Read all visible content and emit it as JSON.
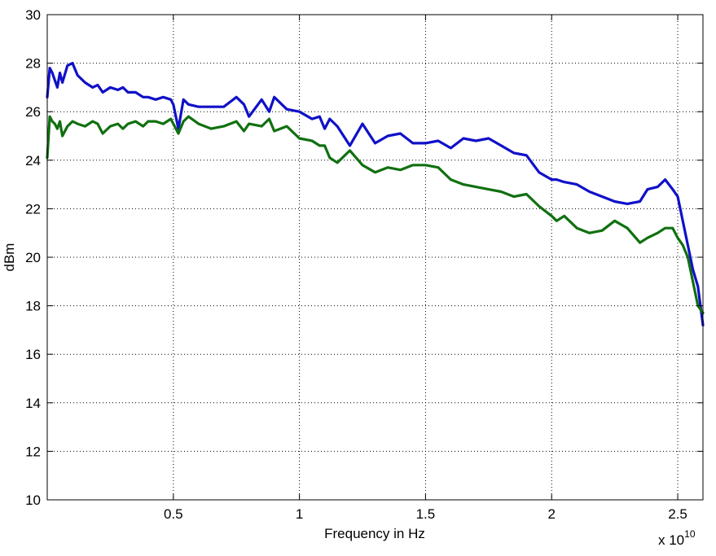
{
  "chart_data": {
    "type": "line",
    "title": "",
    "xlabel": "Frequency in Hz",
    "ylabel": "dBm",
    "x_exponent_label": "x 10",
    "x_exponent_power": "10",
    "x_scale": 10000000000.0,
    "xlim": [
      0.0,
      2.6
    ],
    "ylim": [
      10,
      30
    ],
    "grid": true,
    "grid_style": "dotted",
    "legend": "none",
    "x_ticks": [
      0.5,
      1,
      1.5,
      2,
      2.5
    ],
    "x_tick_labels": [
      "0.5",
      "1",
      "1.5",
      "2",
      "2.5"
    ],
    "y_ticks": [
      10,
      12,
      14,
      16,
      18,
      20,
      22,
      24,
      26,
      28,
      30
    ],
    "y_tick_labels": [
      "10",
      "12",
      "14",
      "16",
      "18",
      "20",
      "22",
      "24",
      "26",
      "28",
      "30"
    ],
    "series": [
      {
        "color": "#1010c8",
        "x": [
          0.0,
          0.01,
          0.02,
          0.03,
          0.04,
          0.05,
          0.06,
          0.08,
          0.1,
          0.12,
          0.15,
          0.18,
          0.2,
          0.22,
          0.25,
          0.28,
          0.3,
          0.32,
          0.35,
          0.38,
          0.4,
          0.43,
          0.46,
          0.49,
          0.5,
          0.52,
          0.54,
          0.56,
          0.6,
          0.65,
          0.7,
          0.75,
          0.78,
          0.8,
          0.85,
          0.88,
          0.9,
          0.95,
          1.0,
          1.05,
          1.08,
          1.1,
          1.12,
          1.15,
          1.2,
          1.25,
          1.3,
          1.35,
          1.4,
          1.45,
          1.5,
          1.55,
          1.6,
          1.65,
          1.7,
          1.75,
          1.8,
          1.85,
          1.9,
          1.95,
          2.0,
          2.02,
          2.05,
          2.1,
          2.15,
          2.2,
          2.25,
          2.3,
          2.35,
          2.38,
          2.42,
          2.45,
          2.48,
          2.5,
          2.52,
          2.54,
          2.56,
          2.58,
          2.6
        ],
        "y": [
          26.6,
          27.8,
          27.6,
          27.3,
          27.0,
          27.6,
          27.2,
          27.9,
          28.0,
          27.5,
          27.2,
          27.0,
          27.1,
          26.8,
          27.0,
          26.9,
          27.0,
          26.8,
          26.8,
          26.6,
          26.6,
          26.5,
          26.6,
          26.5,
          26.3,
          25.3,
          26.5,
          26.3,
          26.2,
          26.2,
          26.2,
          26.6,
          26.3,
          25.8,
          26.5,
          26.0,
          26.6,
          26.1,
          26.0,
          25.7,
          25.8,
          25.3,
          25.7,
          25.4,
          24.6,
          25.5,
          24.7,
          25.0,
          25.1,
          24.7,
          24.7,
          24.8,
          24.5,
          24.9,
          24.8,
          24.9,
          24.6,
          24.3,
          24.2,
          23.5,
          23.2,
          23.2,
          23.1,
          23.0,
          22.7,
          22.5,
          22.3,
          22.2,
          22.3,
          22.8,
          22.9,
          23.2,
          22.8,
          22.5,
          21.5,
          20.5,
          19.5,
          18.8,
          17.2
        ]
      },
      {
        "color": "#107010",
        "x": [
          0.0,
          0.01,
          0.02,
          0.03,
          0.04,
          0.05,
          0.06,
          0.08,
          0.1,
          0.12,
          0.15,
          0.18,
          0.2,
          0.22,
          0.25,
          0.28,
          0.3,
          0.32,
          0.35,
          0.38,
          0.4,
          0.43,
          0.46,
          0.49,
          0.5,
          0.52,
          0.54,
          0.56,
          0.6,
          0.65,
          0.7,
          0.75,
          0.78,
          0.8,
          0.85,
          0.88,
          0.9,
          0.95,
          1.0,
          1.05,
          1.08,
          1.1,
          1.12,
          1.15,
          1.2,
          1.25,
          1.3,
          1.35,
          1.4,
          1.45,
          1.5,
          1.55,
          1.6,
          1.65,
          1.7,
          1.75,
          1.8,
          1.85,
          1.9,
          1.95,
          2.0,
          2.02,
          2.05,
          2.1,
          2.15,
          2.2,
          2.25,
          2.3,
          2.35,
          2.38,
          2.42,
          2.45,
          2.48,
          2.5,
          2.52,
          2.54,
          2.56,
          2.58,
          2.6
        ],
        "y": [
          24.1,
          25.8,
          25.6,
          25.5,
          25.3,
          25.6,
          25.0,
          25.4,
          25.6,
          25.5,
          25.4,
          25.6,
          25.5,
          25.1,
          25.4,
          25.5,
          25.3,
          25.5,
          25.6,
          25.4,
          25.6,
          25.6,
          25.5,
          25.7,
          25.5,
          25.1,
          25.6,
          25.8,
          25.5,
          25.3,
          25.4,
          25.6,
          25.2,
          25.5,
          25.4,
          25.7,
          25.2,
          25.4,
          24.9,
          24.8,
          24.6,
          24.6,
          24.1,
          23.9,
          24.4,
          23.8,
          23.5,
          23.7,
          23.6,
          23.8,
          23.8,
          23.7,
          23.2,
          23.0,
          22.9,
          22.8,
          22.7,
          22.5,
          22.6,
          22.1,
          21.7,
          21.5,
          21.7,
          21.2,
          21.0,
          21.1,
          21.5,
          21.2,
          20.6,
          20.8,
          21.0,
          21.2,
          21.2,
          20.8,
          20.5,
          20.0,
          19.0,
          18.0,
          17.7
        ]
      }
    ]
  }
}
